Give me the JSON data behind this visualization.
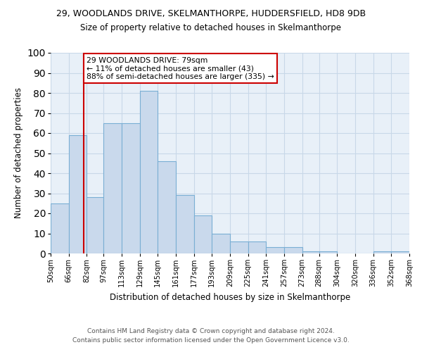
{
  "title": "29, WOODLANDS DRIVE, SKELMANTHORPE, HUDDERSFIELD, HD8 9DB",
  "subtitle": "Size of property relative to detached houses in Skelmanthorpe",
  "xlabel": "Distribution of detached houses by size in Skelmanthorpe",
  "ylabel": "Number of detached properties",
  "bar_values": [
    25,
    59,
    28,
    65,
    65,
    81,
    46,
    29,
    19,
    10,
    6,
    6,
    3,
    3,
    1,
    1,
    0,
    0,
    1,
    1
  ],
  "bin_labels": [
    "50sqm",
    "66sqm",
    "82sqm",
    "97sqm",
    "113sqm",
    "129sqm",
    "145sqm",
    "161sqm",
    "177sqm",
    "193sqm",
    "209sqm",
    "225sqm",
    "241sqm",
    "257sqm",
    "273sqm",
    "288sqm",
    "304sqm",
    "320sqm",
    "336sqm",
    "352sqm",
    "368sqm"
  ],
  "bar_color": "#c9d9ec",
  "bar_edge_color": "#7aafd4",
  "property_line_x": 79,
  "bins_left": [
    50,
    66,
    82,
    97,
    113,
    129,
    145,
    161,
    177,
    193,
    209,
    225,
    241,
    257,
    273,
    288,
    304,
    320,
    336,
    352,
    368
  ],
  "annotation_text": "29 WOODLANDS DRIVE: 79sqm\n← 11% of detached houses are smaller (43)\n88% of semi-detached houses are larger (335) →",
  "annotation_box_color": "#ffffff",
  "annotation_box_edge_color": "#cc0000",
  "vline_color": "#cc0000",
  "grid_color": "#c8d8e8",
  "background_color": "#e8f0f8",
  "ylim": [
    0,
    100
  ],
  "yticks": [
    0,
    10,
    20,
    30,
    40,
    50,
    60,
    70,
    80,
    90,
    100
  ],
  "footer_line1": "Contains HM Land Registry data © Crown copyright and database right 2024.",
  "footer_line2": "Contains public sector information licensed under the Open Government Licence v3.0."
}
